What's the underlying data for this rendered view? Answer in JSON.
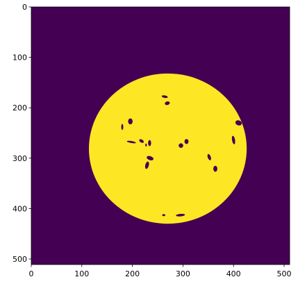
{
  "chart_data": {
    "type": "heatmap",
    "title": "",
    "xlabel": "",
    "ylabel": "",
    "xlim": [
      0,
      511
    ],
    "ylim": [
      511,
      0
    ],
    "x_ticks": [
      0,
      100,
      200,
      300,
      400,
      500
    ],
    "y_ticks": [
      0,
      100,
      200,
      300,
      400,
      500
    ],
    "x_tick_labels": [
      "0",
      "100",
      "200",
      "300",
      "400",
      "500"
    ],
    "y_tick_labels": [
      "0",
      "100",
      "200",
      "300",
      "400",
      "500"
    ],
    "colormap": "viridis",
    "background_value": 0,
    "foreground_value": 1,
    "background_color": "#440154",
    "foreground_color": "#fde725",
    "disk": {
      "center": [
        270,
        281
      ],
      "radius_x": 156,
      "radius_y": 149
    },
    "holes": [
      {
        "c": [
          264,
          178
        ],
        "w": 12,
        "h": 5,
        "rot": 10
      },
      {
        "c": [
          269,
          191
        ],
        "w": 10,
        "h": 7,
        "rot": -15
      },
      {
        "c": [
          196,
          227
        ],
        "w": 9,
        "h": 12,
        "rot": 0
      },
      {
        "c": [
          180,
          238
        ],
        "w": 4,
        "h": 12,
        "rot": 0
      },
      {
        "c": [
          410,
          230
        ],
        "w": 13,
        "h": 10,
        "rot": 20
      },
      {
        "c": [
          400,
          264
        ],
        "w": 6,
        "h": 17,
        "rot": -10
      },
      {
        "c": [
          198,
          268
        ],
        "w": 18,
        "h": 4,
        "rot": 10
      },
      {
        "c": [
          218,
          266
        ],
        "w": 10,
        "h": 6,
        "rot": 30
      },
      {
        "c": [
          234,
          270
        ],
        "w": 6,
        "h": 12,
        "rot": 0
      },
      {
        "c": [
          227,
          274
        ],
        "w": 3,
        "h": 6,
        "rot": 0
      },
      {
        "c": [
          296,
          275
        ],
        "w": 9,
        "h": 9,
        "rot": 0
      },
      {
        "c": [
          307,
          267
        ],
        "w": 8,
        "h": 10,
        "rot": 0
      },
      {
        "c": [
          235,
          300
        ],
        "w": 14,
        "h": 8,
        "rot": 20
      },
      {
        "c": [
          229,
          314
        ],
        "w": 7,
        "h": 15,
        "rot": 15
      },
      {
        "c": [
          352,
          298
        ],
        "w": 6,
        "h": 13,
        "rot": -20
      },
      {
        "c": [
          364,
          321
        ],
        "w": 8,
        "h": 12,
        "rot": 0
      },
      {
        "c": [
          262,
          413
        ],
        "w": 6,
        "h": 4,
        "rot": 0
      },
      {
        "c": [
          295,
          413
        ],
        "w": 18,
        "h": 5,
        "rot": -5
      }
    ]
  }
}
